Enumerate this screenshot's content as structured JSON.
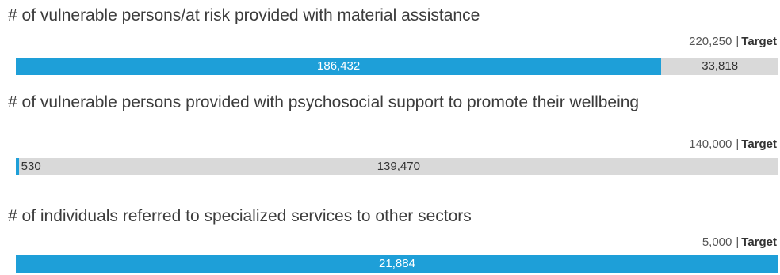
{
  "chart_data": [
    {
      "type": "bar",
      "title": "# of vulnerable persons/at risk provided with material assistance",
      "target": 220250,
      "target_text": "220,250",
      "target_label": "Target",
      "achieved": 186432,
      "achieved_text": "186,432",
      "remaining": 33818,
      "remaining_text": "33,818"
    },
    {
      "type": "bar",
      "title": "# of vulnerable persons provided with psychosocial support to promote their wellbeing",
      "target": 140000,
      "target_text": "140,000",
      "target_label": "Target",
      "achieved": 530,
      "achieved_text": "530",
      "remaining": 139470,
      "remaining_text": "139,470"
    },
    {
      "type": "bar",
      "title": "# of individuals referred to specialized services to other sectors",
      "target": 5000,
      "target_text": "5,000",
      "target_label": "Target",
      "achieved": 21884,
      "achieved_text": "21,884",
      "remaining": 0,
      "remaining_text": ""
    }
  ]
}
